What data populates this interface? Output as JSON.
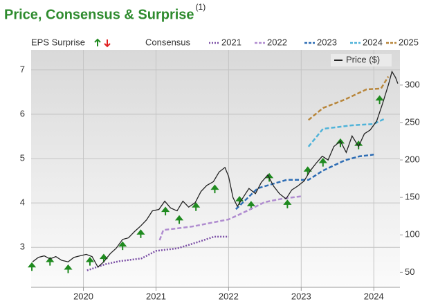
{
  "chart_data": {
    "type": "line",
    "title": "Price, Consensus & Surprise",
    "title_note": "(1)",
    "consensus_label": "Consensus",
    "xlim": [
      2019.28,
      2024.36
    ],
    "xticks": [
      2020,
      2021,
      2022,
      2023,
      2024
    ],
    "ylim": [
      2.1,
      7.45
    ],
    "yticks": [
      3,
      4,
      5,
      6,
      7
    ],
    "y2lim": [
      30,
      347
    ],
    "y2ticks": [
      50,
      100,
      150,
      200,
      250,
      300
    ],
    "grid": true,
    "series": [
      {
        "name": "EPS Surprise",
        "color": "#1f8a1f",
        "marker": "arrow-up",
        "axis": "y",
        "x": [
          2019.29,
          2019.54,
          2019.79,
          2020.09,
          2020.28,
          2020.54,
          2020.79,
          2021.13,
          2021.32,
          2021.55,
          2021.81,
          2022.15,
          2022.31,
          2022.56,
          2022.81,
          2023.09,
          2023.3,
          2023.54,
          2023.79,
          2024.08
        ],
        "values": [
          2.61,
          2.73,
          2.56,
          2.73,
          2.8,
          3.08,
          3.35,
          3.86,
          3.67,
          3.96,
          4.36,
          4.1,
          3.99,
          4.62,
          4.02,
          4.77,
          4.96,
          5.4,
          5.35,
          6.37
        ]
      },
      {
        "name": "2021",
        "color": "#7b4fa6",
        "style": "dotted",
        "axis": "y",
        "x": [
          2020.05,
          2020.3,
          2020.5,
          2020.8,
          2021.0,
          2021.3,
          2021.5,
          2021.8,
          2022.0
        ],
        "values": [
          2.48,
          2.62,
          2.69,
          2.75,
          2.92,
          2.98,
          3.08,
          3.24,
          3.24
        ]
      },
      {
        "name": "2022",
        "color": "#b08cd0",
        "style": "dashed",
        "axis": "y",
        "x": [
          2021.05,
          2021.1,
          2021.5,
          2022.0,
          2022.2,
          2022.5,
          2022.75,
          2023.0
        ],
        "values": [
          3.16,
          3.39,
          3.47,
          3.63,
          3.78,
          4.02,
          4.1,
          4.15
        ]
      },
      {
        "name": "2023",
        "color": "#2e6db4",
        "style": "dashed",
        "axis": "y",
        "x": [
          2022.1,
          2022.4,
          2022.8,
          2023.1,
          2023.3,
          2023.6,
          2023.8,
          2024.0
        ],
        "values": [
          3.86,
          4.33,
          4.52,
          4.52,
          4.73,
          4.96,
          5.05,
          5.09
        ]
      },
      {
        "name": "2024",
        "color": "#4fb3d9",
        "style": "dashed",
        "axis": "y",
        "x": [
          2023.1,
          2023.3,
          2023.7,
          2024.0,
          2024.15
        ],
        "values": [
          5.27,
          5.67,
          5.75,
          5.78,
          5.9
        ]
      },
      {
        "name": "2025",
        "color": "#b8863b",
        "style": "dashed",
        "axis": "y",
        "x": [
          2023.1,
          2023.3,
          2023.6,
          2023.9,
          2024.1,
          2024.2
        ],
        "values": [
          5.87,
          6.14,
          6.33,
          6.56,
          6.58,
          6.85
        ]
      },
      {
        "name": "Price ($)",
        "color": "#222222",
        "style": "solid",
        "axis": "y2",
        "x": [
          2019.3,
          2019.38,
          2019.46,
          2019.54,
          2019.62,
          2019.7,
          2019.79,
          2019.87,
          2019.95,
          2020.04,
          2020.12,
          2020.2,
          2020.28,
          2020.37,
          2020.45,
          2020.54,
          2020.62,
          2020.7,
          2020.79,
          2020.87,
          2020.95,
          2021.04,
          2021.12,
          2021.2,
          2021.29,
          2021.37,
          2021.45,
          2021.54,
          2021.62,
          2021.7,
          2021.79,
          2021.87,
          2021.95,
          2022.0,
          2022.06,
          2022.12,
          2022.2,
          2022.28,
          2022.37,
          2022.45,
          2022.54,
          2022.62,
          2022.7,
          2022.79,
          2022.87,
          2022.95,
          2023.04,
          2023.12,
          2023.2,
          2023.29,
          2023.37,
          2023.45,
          2023.54,
          2023.62,
          2023.7,
          2023.79,
          2023.87,
          2023.95,
          2024.04,
          2024.12,
          2024.2,
          2024.25,
          2024.3,
          2024.33
        ],
        "values": [
          64,
          70,
          72,
          68,
          71,
          66,
          64,
          70,
          72,
          74,
          71,
          57,
          64,
          75,
          82,
          94,
          96,
          104,
          112,
          120,
          132,
          134,
          145,
          136,
          132,
          145,
          137,
          143,
          158,
          166,
          171,
          184,
          190,
          178,
          150,
          138,
          150,
          162,
          155,
          170,
          180,
          165,
          155,
          148,
          160,
          165,
          172,
          185,
          195,
          205,
          200,
          218,
          225,
          210,
          232,
          218,
          235,
          240,
          252,
          275,
          300,
          318,
          310,
          302
        ]
      }
    ]
  }
}
